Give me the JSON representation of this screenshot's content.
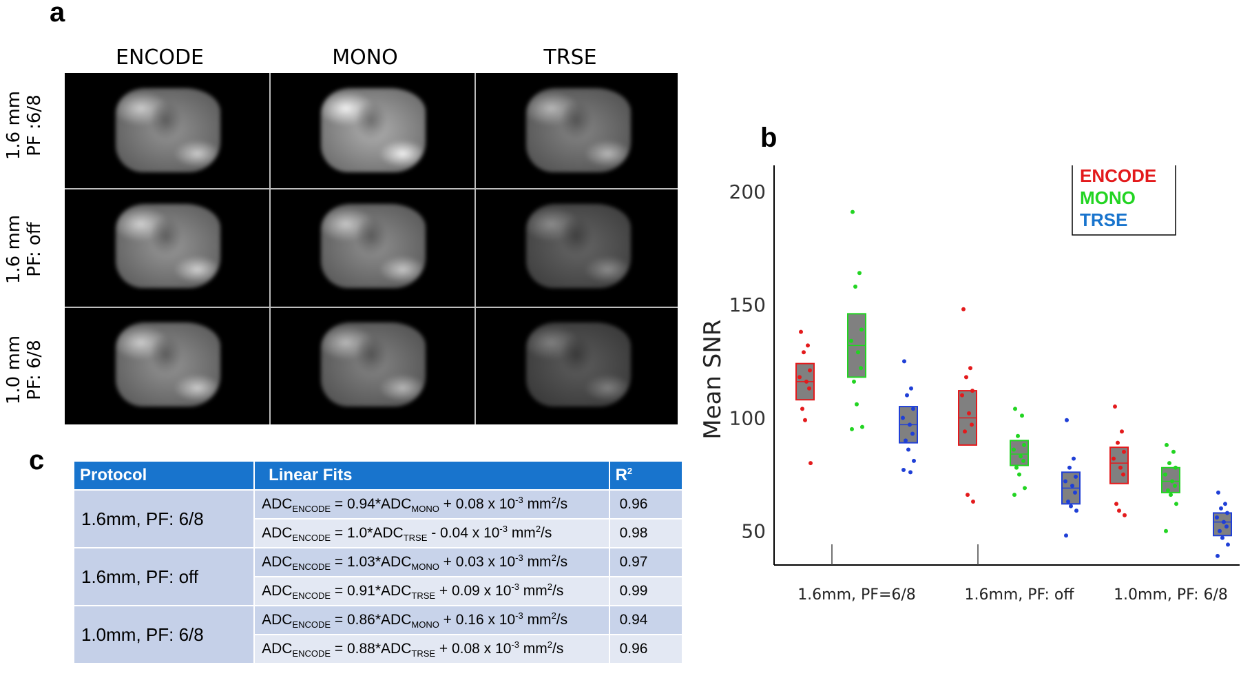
{
  "panel_a": {
    "letter": "a",
    "columns": [
      "ENCODE",
      "MONO",
      "TRSE"
    ],
    "rows": [
      {
        "line1": "1.6 mm",
        "line2": "PF :6/8"
      },
      {
        "line1": "1.6 mm",
        "line2": "PF: off"
      },
      {
        "line1": "1.0 mm",
        "line2": "PF:  6/8"
      }
    ],
    "brightness": [
      [
        0.8,
        0.95,
        0.72
      ],
      [
        0.82,
        0.78,
        0.55
      ],
      [
        0.8,
        0.72,
        0.5
      ]
    ]
  },
  "panel_b": {
    "letter": "b"
  },
  "panel_c": {
    "letter": "c",
    "headers": [
      "Protocol",
      "Linear Fits",
      "R"
    ],
    "r2_superscript": "2",
    "groups": [
      {
        "protocol": "1.6mm, PF: 6/8",
        "fits": [
          {
            "lhs": "ADC",
            "lhs_sub": "ENCODE",
            "mid": " = 0.94*ADC",
            "ref_sub": "MONO",
            "rest": " + 0.08 x 10",
            "exp": "-3",
            "unit": " mm",
            "unit_exp": "2",
            "tail": "/s",
            "r2": "0.96"
          },
          {
            "lhs": "ADC",
            "lhs_sub": "ENCODE",
            "mid": " = 1.0*ADC",
            "ref_sub": "TRSE",
            "rest": " - 0.04 x 10",
            "exp": "-3",
            "unit": " mm",
            "unit_exp": "2",
            "tail": "/s",
            "r2": "0.98"
          }
        ]
      },
      {
        "protocol": "1.6mm, PF: off",
        "fits": [
          {
            "lhs": "ADC",
            "lhs_sub": "ENCODE",
            "mid": " = 1.03*ADC",
            "ref_sub": "MONO",
            "rest": " + 0.03 x 10",
            "exp": "-3",
            "unit": " mm",
            "unit_exp": "2",
            "tail": "/s",
            "r2": "0.97"
          },
          {
            "lhs": "ADC",
            "lhs_sub": "ENCODE",
            "mid": " = 0.91*ADC",
            "ref_sub": "TRSE",
            "rest": " + 0.09 x 10",
            "exp": "-3",
            "unit": " mm",
            "unit_exp": "2",
            "tail": "/s",
            "r2": "0.99"
          }
        ]
      },
      {
        "protocol": "1.0mm, PF: 6/8",
        "fits": [
          {
            "lhs": "ADC",
            "lhs_sub": "ENCODE",
            "mid": " = 0.86*ADC",
            "ref_sub": "MONO",
            "rest": " + 0.16 x 10",
            "exp": "-3",
            "unit": " mm",
            "unit_exp": "2",
            "tail": "/s",
            "r2": "0.94"
          },
          {
            "lhs": "ADC",
            "lhs_sub": "ENCODE",
            "mid": " = 0.88*ADC",
            "ref_sub": "TRSE",
            "rest": " + 0.08 x 10",
            "exp": "-3",
            "unit": " mm",
            "unit_exp": "2",
            "tail": "/s",
            "r2": "0.96"
          }
        ]
      }
    ]
  },
  "colors": {
    "ENCODE": "#e31a1c",
    "MONO": "#22d422",
    "TRSE": "#1f3fd6",
    "box_fill": "#808080",
    "legend_TRSE": "#1874cd",
    "table_header": "#1874cd"
  },
  "chart_data": {
    "type": "box",
    "ylabel": "Mean SNR",
    "ylim": [
      35,
      200
    ],
    "yticks": [
      50,
      100,
      150,
      200
    ],
    "categories": [
      "1.6mm, PF=6/8",
      "1.6mm, PF: off",
      "1.0mm, PF: 6/8"
    ],
    "legend": {
      "position": "top-right",
      "entries": [
        "ENCODE",
        "MONO",
        "TRSE"
      ]
    },
    "series": [
      {
        "name": "ENCODE",
        "boxes": [
          {
            "q1": 108,
            "median": 116,
            "q3": 124,
            "points": [
              138,
              132,
              129,
              121,
              118,
              116,
              113,
              104,
              99,
              80
            ]
          },
          {
            "q1": 88,
            "median": 100,
            "q3": 112,
            "points": [
              148,
              122,
              118,
              112,
              110,
              102,
              97,
              94,
              66,
              63
            ]
          },
          {
            "q1": 71,
            "median": 80,
            "q3": 87,
            "points": [
              105,
              94,
              89,
              85,
              82,
              78,
              75,
              62,
              59,
              57
            ]
          }
        ]
      },
      {
        "name": "MONO",
        "boxes": [
          {
            "q1": 118,
            "median": 132,
            "q3": 146,
            "points": [
              191,
              164,
              158,
              139,
              134,
              129,
              122,
              116,
              106,
              96,
              95
            ]
          },
          {
            "q1": 79,
            "median": 84,
            "q3": 90,
            "points": [
              104,
              101,
              92,
              88,
              86,
              83,
              81,
              78,
              75,
              69,
              66
            ]
          },
          {
            "q1": 67,
            "median": 72,
            "q3": 78,
            "points": [
              88,
              85,
              80,
              78,
              75,
              72,
              70,
              68,
              66,
              62,
              50
            ]
          }
        ]
      },
      {
        "name": "TRSE",
        "boxes": [
          {
            "q1": 89,
            "median": 97,
            "q3": 105,
            "points": [
              125,
              113,
              110,
              104,
              100,
              97,
              93,
              90,
              86,
              81,
              77,
              76
            ]
          },
          {
            "q1": 62,
            "median": 69,
            "q3": 76,
            "points": [
              99,
              82,
              78,
              74,
              72,
              70,
              67,
              63,
              61,
              59,
              48
            ]
          },
          {
            "q1": 48,
            "median": 54,
            "q3": 58,
            "points": [
              67,
              62,
              60,
              58,
              56,
              54,
              52,
              50,
              47,
              44,
              39
            ]
          }
        ]
      }
    ]
  }
}
